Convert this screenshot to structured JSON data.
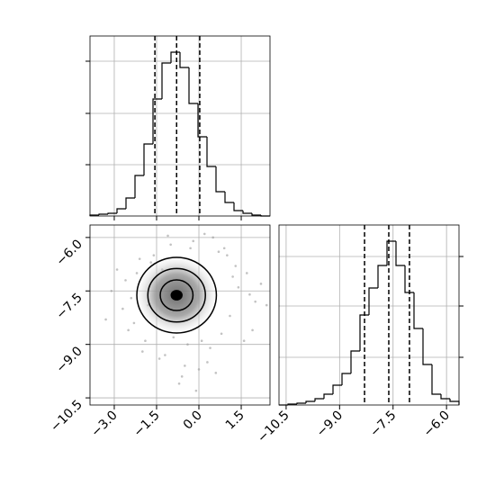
{
  "chart_data": [
    {
      "type": "histogram",
      "xlim": [
        -3.86,
        2.52
      ],
      "xticks": [
        -3,
        -1.5,
        0,
        1.5
      ],
      "ylim": [
        0,
        200
      ],
      "yticks": [
        57,
        114,
        172
      ],
      "bins": [
        -3.86,
        -3.541,
        -3.222,
        -2.903,
        -2.584,
        -2.265,
        -1.946,
        -1.627,
        -1.308,
        -0.989,
        -0.67,
        -0.351,
        -0.032,
        0.287,
        0.606,
        0.925,
        1.244,
        1.563,
        1.882,
        2.201,
        2.52
      ],
      "counts": [
        1,
        2,
        3,
        8,
        20,
        45,
        80,
        130,
        170,
        182,
        165,
        125,
        88,
        55,
        27,
        15,
        6,
        3,
        1,
        0
      ],
      "quantiles": [
        -1.56,
        -0.79,
        0.03
      ],
      "color": "#000000",
      "grid": true
    },
    {
      "type": "scatter",
      "xlim": [
        -3.86,
        2.52
      ],
      "xticks": [
        {
          "value": -3,
          "label": "−3.0"
        },
        {
          "value": -1.5,
          "label": "−1.5"
        },
        {
          "value": 0,
          "label": "0.0"
        },
        1.5
      ],
      "ylim": [
        -10.7,
        -5.65
      ],
      "yticks": [
        {
          "value": -6,
          "label": "−6.0"
        },
        {
          "value": -7.5,
          "label": "−7.5"
        },
        {
          "value": -9,
          "label": "−9.0"
        },
        {
          "value": -10.5,
          "label": "−10.5"
        }
      ],
      "x": [
        -2.6,
        -2.3,
        -2.1,
        -1.9,
        -1.8,
        -2.4,
        -2.7,
        -1.2,
        -0.5,
        0.4,
        0.8,
        1.1,
        1.4,
        1.7,
        2.0,
        0.9,
        -0.2,
        -1.0,
        -1.6,
        -2.2,
        0.6,
        1.3,
        -0.7,
        0.2,
        1.9,
        -3.1,
        -2.9,
        2.2,
        0.1,
        -0.4,
        -1.4,
        1.0,
        -2.0,
        0.5,
        -1.1,
        1.6,
        -0.9,
        0.3,
        -2.5,
        1.2,
        -0.1,
        -1.7,
        0.7,
        -0.6,
        -3.3,
        2.4,
        -1.3,
        1.8,
        -0.3,
        0.0
      ],
      "y": [
        -7.2,
        -8.4,
        -6.6,
        -8.9,
        -7.9,
        -7.7,
        -8.0,
        -9.3,
        -9.6,
        -9.1,
        -8.7,
        -8.2,
        -7.4,
        -7.0,
        -7.8,
        -6.3,
        -6.1,
        -6.2,
        -6.5,
        -7.0,
        -9.8,
        -6.8,
        -10.1,
        -5.9,
        -8.6,
        -7.5,
        -6.9,
        -7.3,
        -8.9,
        -9.0,
        -9.4,
        -6.5,
        -9.2,
        -6.0,
        -5.95,
        -8.9,
        -8.8,
        -9.5,
        -8.6,
        -7.1,
        -10.3,
        -6.7,
        -6.4,
        -9.9,
        -8.3,
        -7.9,
        -6.9,
        -7.6,
        -6.3,
        -9.7
      ],
      "contours": {
        "cx": -0.79,
        "cy": -7.62,
        "rx": [
          1.41,
          1.02,
          0.58,
          0.19
        ],
        "ry": [
          1.06,
          0.75,
          0.43,
          0.13
        ]
      },
      "color": "#000000",
      "grid": true
    },
    {
      "type": "histogram",
      "xlim": [
        -10.7,
        -5.65
      ],
      "xticks": [
        {
          "value": -10.5,
          "label": "−10.5"
        },
        {
          "value": -9,
          "label": "−9.0"
        },
        {
          "value": -7.5,
          "label": "−7.5"
        },
        {
          "value": -6,
          "label": "−6.0"
        }
      ],
      "ylim": [
        0,
        200
      ],
      "yticks": [
        53,
        110,
        165
      ],
      "bins": [
        -10.7,
        -10.4475,
        -10.195,
        -9.9425,
        -9.69,
        -9.4375,
        -9.185,
        -8.9325,
        -8.68,
        -8.4275,
        -8.175,
        -7.9225,
        -7.67,
        -7.4175,
        -7.165,
        -6.9125,
        -6.66,
        -6.4075,
        -6.155,
        -5.9025,
        -5.65
      ],
      "counts": [
        0,
        1,
        2,
        4,
        7,
        12,
        22,
        35,
        60,
        100,
        130,
        155,
        182,
        155,
        125,
        85,
        45,
        12,
        7,
        4
      ],
      "quantiles": [
        -8.3,
        -7.62,
        -7.04
      ],
      "color": "#000000",
      "grid": true
    }
  ]
}
